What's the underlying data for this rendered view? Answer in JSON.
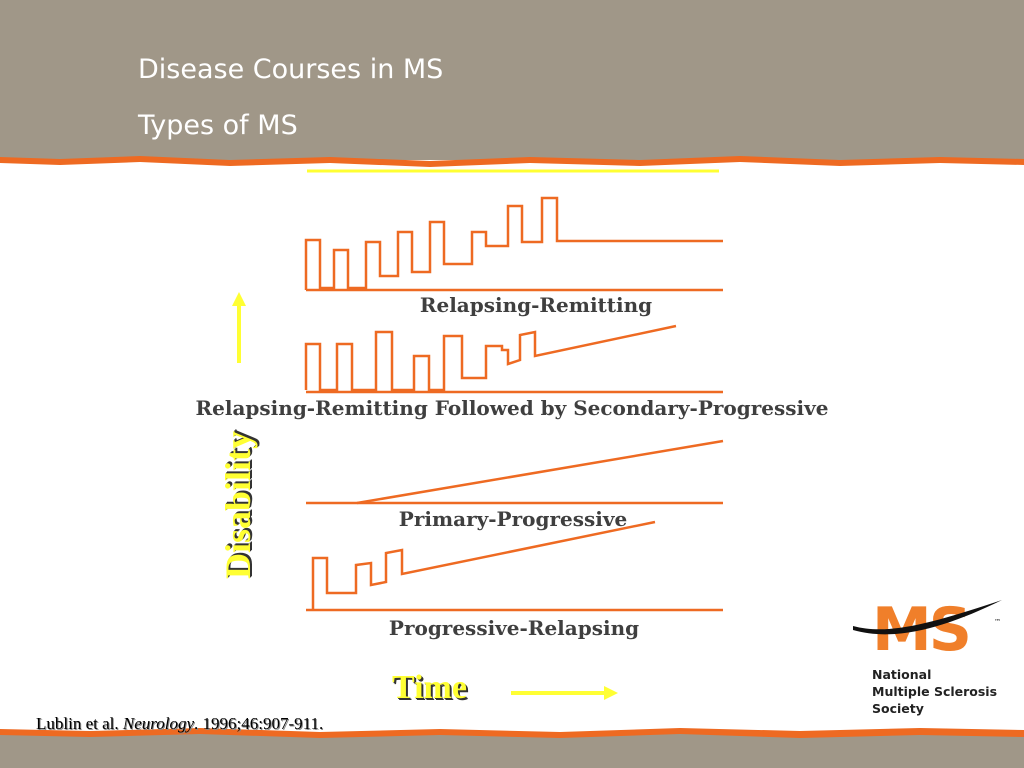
{
  "header": {
    "title": "Disease Courses in MS",
    "subtitle": "Types of MS"
  },
  "axes": {
    "y_label": "Disability",
    "x_label": "Time"
  },
  "courses": [
    {
      "id": "rr",
      "label": "Relapsing-Remitting"
    },
    {
      "id": "sp",
      "label": "Relapsing-Remitting Followed by Secondary-Progressive"
    },
    {
      "id": "pp",
      "label": "Primary-Progressive"
    },
    {
      "id": "pr",
      "label": "Progressive-Relapsing"
    }
  ],
  "citation": {
    "authors": "Lublin et al.",
    "journal": "Neurology",
    "details": ". 1996;46:907-911."
  },
  "logo": {
    "mark": "MS",
    "trademark": "™",
    "lines": [
      "National",
      "Multiple Sclerosis",
      "Society"
    ]
  },
  "colors": {
    "header_bg": "#a09788",
    "accent_orange": "#ee6a22",
    "arrow_yellow": "#ffff33",
    "label_gray": "#3f3f3f",
    "logo_orange": "#f07f2a"
  }
}
